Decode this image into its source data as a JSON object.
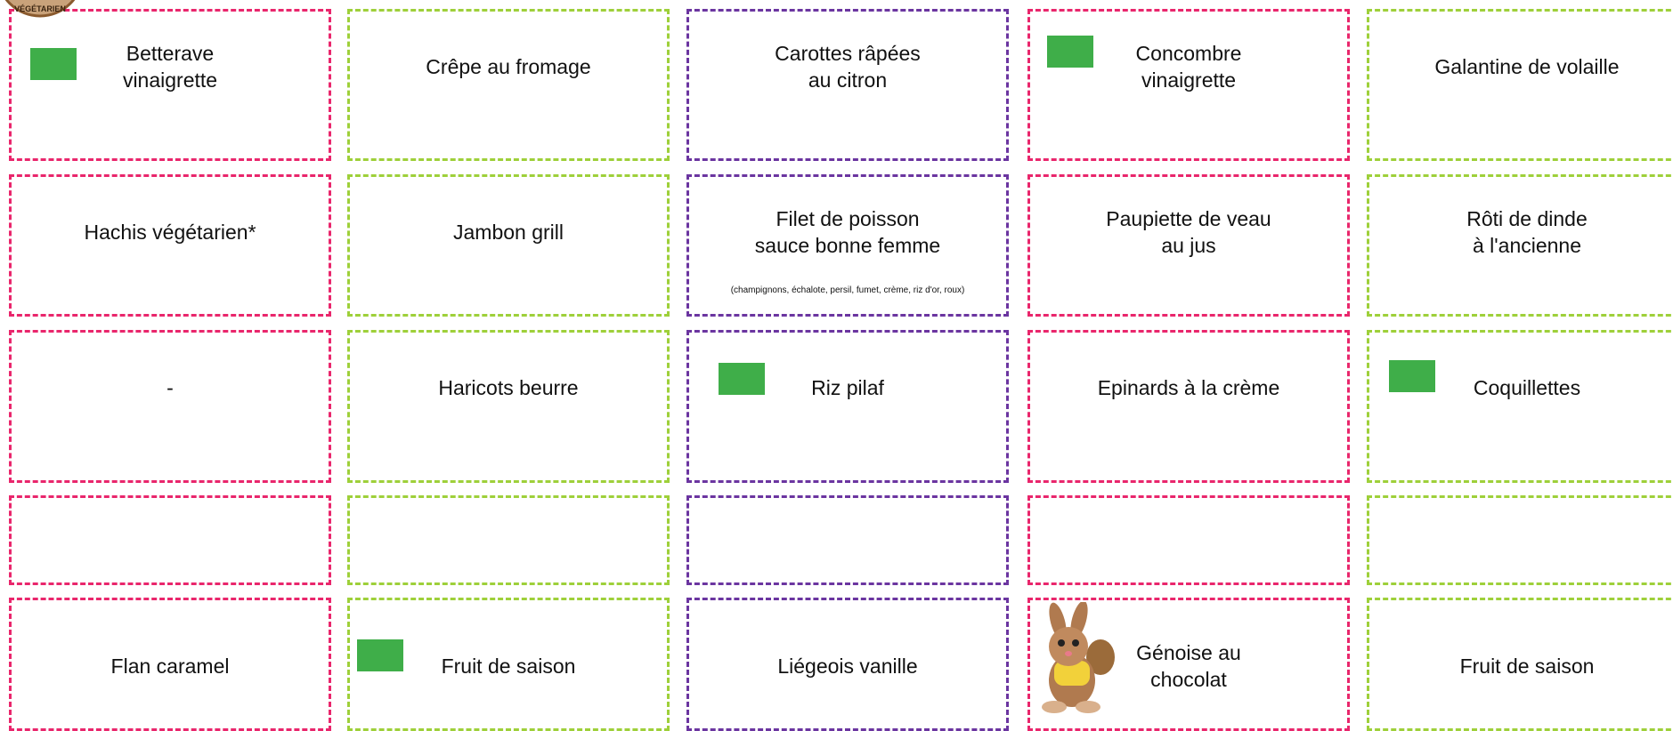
{
  "badge": "VÉGÉTARIEN",
  "grid": {
    "rows": [
      [
        {
          "lines": [
            "Betterave",
            "vinaigrette"
          ]
        },
        {
          "lines": [
            "Crêpe au fromage"
          ]
        },
        {
          "lines": [
            "Carottes râpées",
            "au citron"
          ]
        },
        {
          "lines": [
            "Concombre",
            "vinaigrette"
          ]
        },
        {
          "lines": [
            "Galantine de volaille"
          ]
        }
      ],
      [
        {
          "lines": [
            "Hachis végétarien*"
          ]
        },
        {
          "lines": [
            "Jambon grill"
          ]
        },
        {
          "lines": [
            "Filet de poisson",
            "sauce bonne femme"
          ],
          "note": "(champignons, échalote, persil, fumet, crème, riz d'or, roux)"
        },
        {
          "lines": [
            "Paupiette de veau",
            "au jus"
          ]
        },
        {
          "lines": [
            "Rôti de dinde",
            "à l'ancienne"
          ]
        }
      ],
      [
        {
          "lines": [
            "-"
          ]
        },
        {
          "lines": [
            "Haricots beurre"
          ]
        },
        {
          "lines": [
            "Riz pilaf"
          ]
        },
        {
          "lines": [
            "Epinards à la crème"
          ]
        },
        {
          "lines": [
            "Coquillettes"
          ]
        }
      ],
      [
        {
          "lines": []
        },
        {
          "lines": []
        },
        {
          "lines": []
        },
        {
          "lines": []
        },
        {
          "lines": []
        }
      ],
      [
        {
          "lines": [
            "Flan caramel"
          ]
        },
        {
          "lines": [
            "Fruit de saison"
          ]
        },
        {
          "lines": [
            "Liégeois vanille"
          ]
        },
        {
          "lines": [
            "Génoise au",
            "chocolat"
          ]
        },
        {
          "lines": [
            "Fruit de saison"
          ]
        }
      ]
    ]
  }
}
